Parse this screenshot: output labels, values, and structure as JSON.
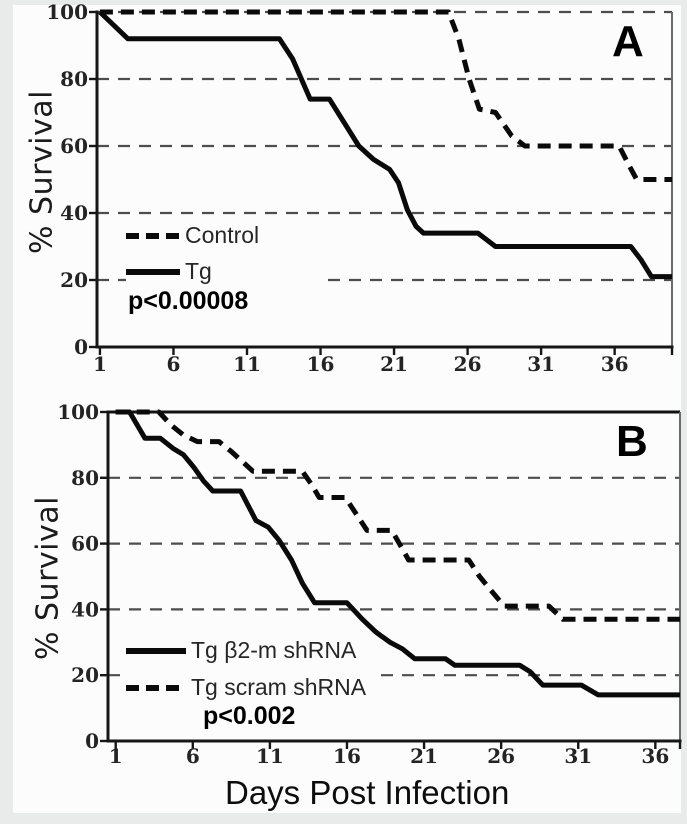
{
  "figure": {
    "y_axis_title": "% Survival",
    "x_axis_title": "Days Post Infection"
  },
  "chart_data": [
    {
      "panel": "A",
      "type": "line",
      "title": "",
      "ylabel": "% Survival",
      "xlabel": "",
      "p_value_label": "p<0.00008",
      "x_ticks": [
        1,
        6,
        11,
        16,
        21,
        26,
        31,
        36
      ],
      "y_ticks": [
        0,
        20,
        40,
        60,
        80,
        100
      ],
      "xlim": [
        0.8,
        39.9
      ],
      "ylim": [
        0,
        100
      ],
      "grid": "horizontal-dashed",
      "top_border": "dashed",
      "legend_position": "center-left",
      "legend": [
        {
          "label": "Control",
          "style": "dashed"
        },
        {
          "label": "Tg",
          "style": "solid"
        }
      ],
      "series": [
        {
          "name": "Control",
          "style": "dashed",
          "points": [
            [
              1,
              100
            ],
            [
              24.7,
              100
            ],
            [
              25.4,
              92
            ],
            [
              26.1,
              80
            ],
            [
              26.8,
              71
            ],
            [
              27.9,
              70
            ],
            [
              29,
              63
            ],
            [
              29.9,
              60
            ],
            [
              36.3,
              60
            ],
            [
              37,
              54
            ],
            [
              37.5,
              50
            ],
            [
              39.9,
              50
            ]
          ]
        },
        {
          "name": "Tg",
          "style": "solid",
          "points": [
            [
              1,
              100
            ],
            [
              2.9,
              92
            ],
            [
              13.2,
              92
            ],
            [
              14.1,
              86
            ],
            [
              15.3,
              74
            ],
            [
              16.6,
              74
            ],
            [
              17.6,
              67
            ],
            [
              18.6,
              60
            ],
            [
              19.6,
              56
            ],
            [
              20.7,
              53
            ],
            [
              21.3,
              49
            ],
            [
              21.9,
              41
            ],
            [
              22.5,
              36
            ],
            [
              23,
              34
            ],
            [
              26.7,
              34
            ],
            [
              27.9,
              30
            ],
            [
              37.1,
              30
            ],
            [
              37.8,
              26
            ],
            [
              38.5,
              21
            ],
            [
              39.9,
              21
            ]
          ]
        }
      ]
    },
    {
      "panel": "B",
      "type": "line",
      "title": "",
      "ylabel": "% Survival",
      "xlabel": "Days Post Infection",
      "p_value_label": "p<0.002",
      "x_ticks": [
        1,
        6,
        11,
        16,
        21,
        26,
        31,
        36
      ],
      "y_ticks": [
        0,
        20,
        40,
        60,
        80,
        100
      ],
      "xlim": [
        0.5,
        37.6
      ],
      "ylim": [
        0,
        100
      ],
      "grid": "horizontal-dashed",
      "top_border": "solid",
      "legend_position": "lower-left",
      "legend": [
        {
          "label": "Tg β2-m shRNA",
          "style": "solid"
        },
        {
          "label": "Tg scram shRNA",
          "style": "dashed"
        }
      ],
      "series": [
        {
          "name": "Tg β2-m shRNA",
          "style": "solid",
          "points": [
            [
              1,
              100
            ],
            [
              1.9,
              100
            ],
            [
              2.9,
              92
            ],
            [
              3.9,
              92
            ],
            [
              4.7,
              89
            ],
            [
              5.4,
              87
            ],
            [
              6.1,
              83
            ],
            [
              6.7,
              79
            ],
            [
              7.3,
              76
            ],
            [
              9.1,
              76
            ],
            [
              10.1,
              67
            ],
            [
              10.9,
              65
            ],
            [
              11.6,
              61
            ],
            [
              12.4,
              55
            ],
            [
              13.1,
              48
            ],
            [
              13.9,
              42
            ],
            [
              16,
              42
            ],
            [
              17,
              37
            ],
            [
              17.9,
              33
            ],
            [
              18.8,
              30
            ],
            [
              19.6,
              28
            ],
            [
              20.4,
              25
            ],
            [
              22.4,
              25
            ],
            [
              23,
              23
            ],
            [
              27.2,
              23
            ],
            [
              27.9,
              21
            ],
            [
              28.7,
              17
            ],
            [
              31.2,
              17
            ],
            [
              32.3,
              14
            ],
            [
              37.6,
              14
            ]
          ]
        },
        {
          "name": "Tg scram shRNA",
          "style": "dashed",
          "points": [
            [
              1,
              100
            ],
            [
              3.8,
              100
            ],
            [
              4.6,
              96
            ],
            [
              5.4,
              93
            ],
            [
              6.3,
              91
            ],
            [
              7.7,
              91
            ],
            [
              8.5,
              88
            ],
            [
              9.2,
              85
            ],
            [
              9.9,
              82
            ],
            [
              13.1,
              82
            ],
            [
              13.7,
              78
            ],
            [
              14.2,
              74
            ],
            [
              15.9,
              74
            ],
            [
              16.6,
              69
            ],
            [
              17.3,
              64
            ],
            [
              18.9,
              64
            ],
            [
              19.4,
              60
            ],
            [
              20,
              55
            ],
            [
              23.9,
              55
            ],
            [
              24.6,
              50
            ],
            [
              25.3,
              46
            ],
            [
              26.2,
              41
            ],
            [
              29.1,
              41
            ],
            [
              30,
              37
            ],
            [
              37.6,
              37
            ]
          ]
        }
      ]
    }
  ]
}
